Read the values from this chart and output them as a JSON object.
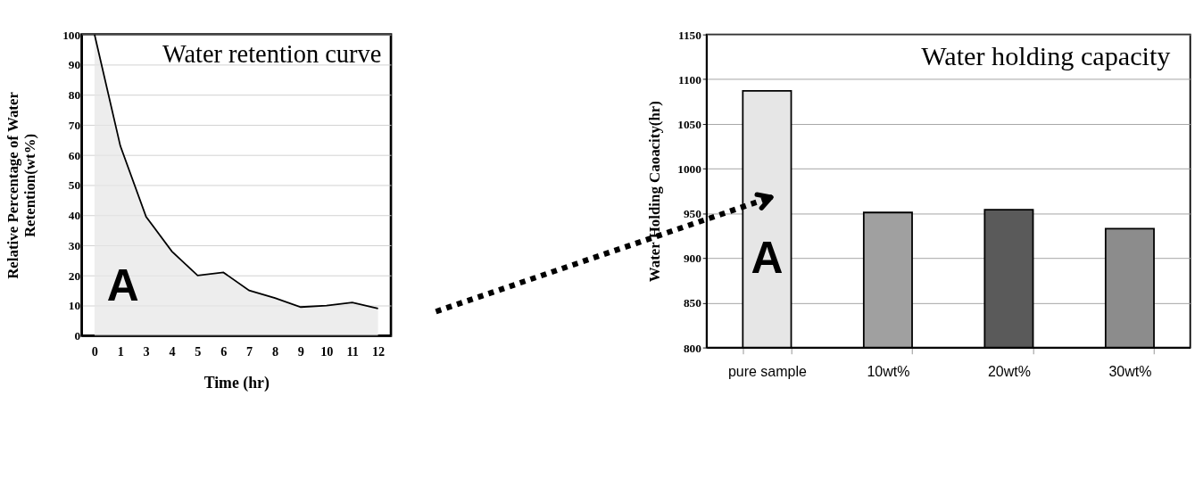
{
  "chart_data": [
    {
      "type": "area",
      "title": "Water retention curve",
      "xlabel": "Time (hr)",
      "ylabel": "Relative Percentage of Water\nRetention(wt%)",
      "categories": [
        "0",
        "1",
        "3",
        "4",
        "5",
        "6",
        "7",
        "8",
        "9",
        "10",
        "11",
        "12"
      ],
      "values": [
        100,
        63,
        39.5,
        28,
        20,
        21,
        15,
        12.5,
        9.5,
        10,
        11,
        9
      ],
      "color": "#e6e6e6",
      "ylim": [
        0,
        100
      ],
      "yticks": [
        0,
        10,
        20,
        30,
        40,
        50,
        60,
        70,
        80,
        90,
        100
      ],
      "grid": "y",
      "annotations": [
        "A"
      ]
    },
    {
      "type": "bar",
      "title": "Water holding capacity",
      "ylabel": "Water Holding Caoacity(hr)",
      "categories": [
        "pure sample",
        "10wt%",
        "20wt%",
        "30wt%"
      ],
      "values": [
        1087,
        951,
        954,
        933
      ],
      "colors": [
        "#e6e6e6",
        "#a0a0a0",
        "#5a5a5a",
        "#8c8c8c"
      ],
      "ylim": [
        800,
        1150
      ],
      "yticks": [
        800,
        850,
        900,
        950,
        1000,
        1050,
        1100,
        1150
      ],
      "grid": "y",
      "annotations": [
        "A"
      ]
    }
  ]
}
